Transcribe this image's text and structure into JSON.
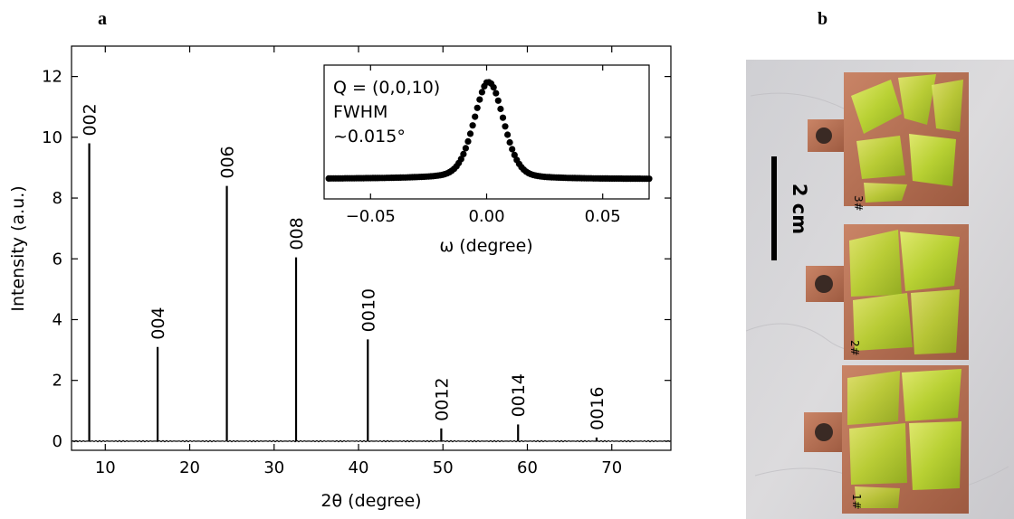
{
  "panels": {
    "a": "a",
    "b": "b"
  },
  "chart_data": [
    {
      "type": "bar",
      "title": "",
      "xlabel": "2θ (degree)",
      "ylabel": "Intensity (a.u.)",
      "xlim": [
        6,
        77
      ],
      "ylim": [
        -0.3,
        13
      ],
      "xticks": [
        10,
        20,
        30,
        40,
        50,
        60,
        70
      ],
      "yticks": [
        0,
        2,
        4,
        6,
        8,
        10,
        12
      ],
      "grid": false,
      "peaks": [
        {
          "label": "002",
          "x": 8.1,
          "y": 9.8
        },
        {
          "label": "004",
          "x": 16.2,
          "y": 3.1
        },
        {
          "label": "006",
          "x": 24.4,
          "y": 8.4
        },
        {
          "label": "008",
          "x": 32.6,
          "y": 6.05
        },
        {
          "label": "0010",
          "x": 41.1,
          "y": 3.35
        },
        {
          "label": "0012",
          "x": 49.8,
          "y": 0.42
        },
        {
          "label": "0014",
          "x": 58.9,
          "y": 0.55
        },
        {
          "label": "0016",
          "x": 68.2,
          "y": 0.12
        }
      ],
      "color": "#000000"
    },
    {
      "type": "scatter",
      "title": "",
      "xlabel": "ω (degree)",
      "ylabel": "",
      "xlim": [
        -0.07,
        0.07
      ],
      "xticks": [
        -0.05,
        0.0,
        0.05
      ],
      "xtick_labels": [
        "−0.05",
        "0.00",
        "0.05"
      ],
      "annotation": [
        "Q = (0,0,10)",
        "FWHM",
        "~0.015°"
      ],
      "peak_center": 0.001,
      "fwhm": 0.015,
      "color": "#000000"
    }
  ],
  "photo": {
    "scale_bar_label": "2 cm",
    "plate_marks": [
      "3#",
      "2#",
      "1#"
    ],
    "colors": {
      "background": "#d7d6d8",
      "copper": "#b56e52",
      "crystal": "#c8dc3c"
    }
  }
}
